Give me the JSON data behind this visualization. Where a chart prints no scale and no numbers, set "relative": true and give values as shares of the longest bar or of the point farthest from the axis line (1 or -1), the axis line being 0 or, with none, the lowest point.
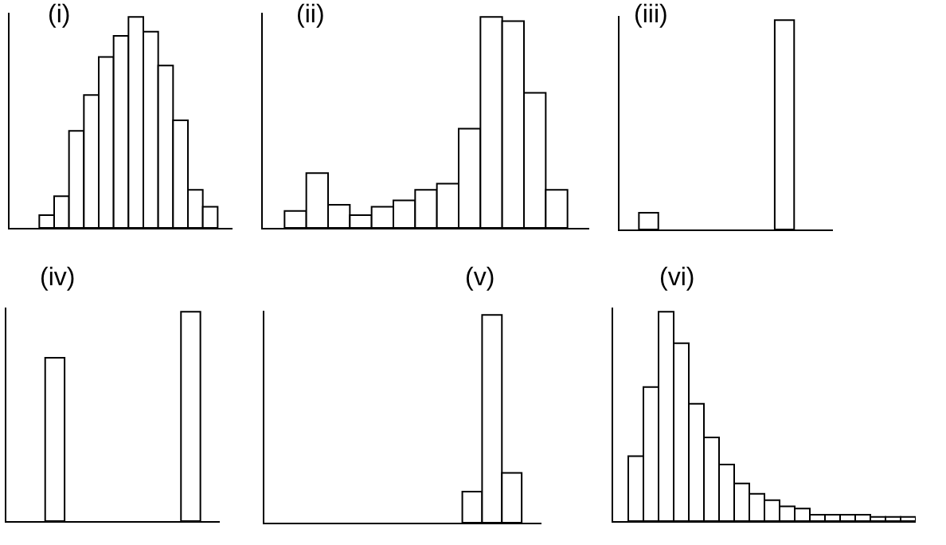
{
  "chart_data": [
    {
      "type": "bar",
      "title": "(i)",
      "relative": true,
      "tick_labels": false,
      "categories": [
        null,
        null,
        null,
        null,
        null,
        null,
        null,
        null,
        null,
        null,
        null,
        null
      ],
      "series": [
        {
          "color": "#ffffff",
          "values": [
            0.06,
            0.15,
            0.46,
            0.63,
            0.81,
            0.91,
            1,
            0.93,
            0.77,
            0.51,
            0.18,
            0.1
          ]
        }
      ]
    },
    {
      "type": "bar",
      "title": "(ii)",
      "relative": true,
      "tick_labels": false,
      "categories": [
        null,
        null,
        null,
        null,
        null,
        null,
        null,
        null,
        null,
        null,
        null,
        null,
        null
      ],
      "series": [
        {
          "color": "#ffffff",
          "values": [
            0.08,
            0.26,
            0.11,
            0.06,
            0.1,
            0.13,
            0.18,
            0.21,
            0.47,
            1,
            0.98,
            0.64,
            0.18
          ]
        }
      ]
    },
    {
      "type": "bar",
      "title": "(iii)",
      "relative": true,
      "tick_labels": false,
      "categories": [
        null,
        null
      ],
      "series": [
        {
          "color": "#ffffff",
          "values": [
            0.08,
            1
          ]
        }
      ]
    },
    {
      "type": "bar",
      "title": "(iv)",
      "relative": true,
      "tick_labels": false,
      "categories": [
        null,
        null
      ],
      "series": [
        {
          "color": "#ffffff",
          "values": [
            0.78,
            1
          ]
        }
      ]
    },
    {
      "type": "bar",
      "title": "(v)",
      "relative": true,
      "tick_labels": false,
      "categories": [
        null,
        null,
        null
      ],
      "series": [
        {
          "color": "#ffffff",
          "values": [
            0.15,
            1,
            0.24
          ]
        }
      ]
    },
    {
      "type": "bar",
      "title": "(vi)",
      "relative": true,
      "tick_labels": false,
      "categories": [
        null,
        null,
        null,
        null,
        null,
        null,
        null,
        null,
        null,
        null,
        null,
        null,
        null,
        null,
        null,
        null,
        null,
        null,
        null
      ],
      "series": [
        {
          "color": "#ffffff",
          "values": [
            0.31,
            0.64,
            1,
            0.85,
            0.56,
            0.4,
            0.27,
            0.18,
            0.13,
            0.1,
            0.07,
            0.06,
            0.03,
            0.03,
            0.03,
            0.03,
            0.02,
            0.02,
            0.02
          ]
        }
      ]
    }
  ]
}
